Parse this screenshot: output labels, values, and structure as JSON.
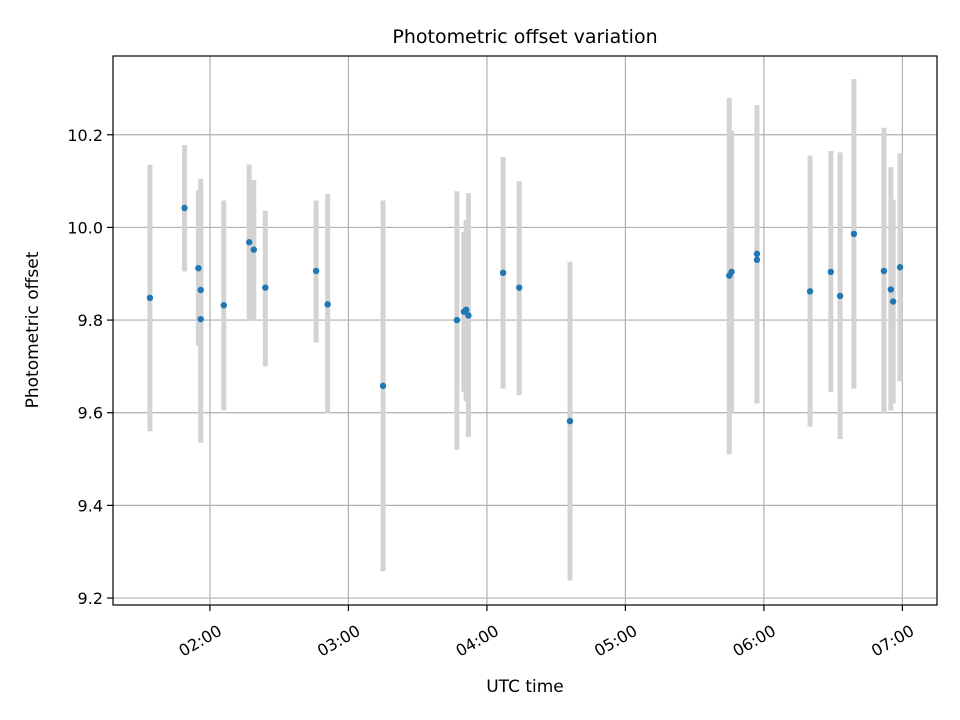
{
  "chart_data": {
    "type": "scatter",
    "title": "Photometric offset variation",
    "xlabel": "UTC time",
    "ylabel": "Photometric offset",
    "x_unit": "hours UTC",
    "xlim": [
      "01:18",
      "07:15"
    ],
    "ylim": [
      9.185,
      10.37
    ],
    "x_ticks": [
      "02:00",
      "03:00",
      "04:00",
      "05:00",
      "06:00",
      "07:00"
    ],
    "y_ticks": [
      "9.2",
      "9.4",
      "9.6",
      "9.8",
      "10.0",
      "10.2"
    ],
    "grid": true,
    "colors": {
      "point": "#1f77b4",
      "errorbar": "#d3d3d3",
      "grid": "#b0b0b0"
    },
    "points": [
      {
        "time": "01:34",
        "y": 9.848,
        "err_low": 9.56,
        "err_high": 10.135
      },
      {
        "time": "01:49",
        "y": 10.042,
        "err_low": 9.905,
        "err_high": 10.178
      },
      {
        "time": "01:55",
        "y": 9.912,
        "err_low": 9.745,
        "err_high": 10.08
      },
      {
        "time": "01:56",
        "y": 9.865,
        "err_low": 9.62,
        "err_high": 10.105
      },
      {
        "time": "01:56",
        "y": 9.802,
        "err_low": 9.535,
        "err_high": 10.07
      },
      {
        "time": "02:06",
        "y": 9.832,
        "err_low": 9.605,
        "err_high": 10.058
      },
      {
        "time": "02:17",
        "y": 9.968,
        "err_low": 9.8,
        "err_high": 10.136
      },
      {
        "time": "02:19",
        "y": 9.952,
        "err_low": 9.8,
        "err_high": 10.102
      },
      {
        "time": "02:24",
        "y": 9.87,
        "err_low": 9.7,
        "err_high": 10.036
      },
      {
        "time": "02:46",
        "y": 9.906,
        "err_low": 9.752,
        "err_high": 10.058
      },
      {
        "time": "02:51",
        "y": 9.834,
        "err_low": 9.598,
        "err_high": 10.072
      },
      {
        "time": "03:15",
        "y": 9.658,
        "err_low": 9.258,
        "err_high": 10.058
      },
      {
        "time": "03:47",
        "y": 9.8,
        "err_low": 9.52,
        "err_high": 10.078
      },
      {
        "time": "03:50",
        "y": 9.818,
        "err_low": 9.645,
        "err_high": 9.99
      },
      {
        "time": "03:51",
        "y": 9.822,
        "err_low": 9.625,
        "err_high": 10.016
      },
      {
        "time": "03:52",
        "y": 9.81,
        "err_low": 9.548,
        "err_high": 10.074
      },
      {
        "time": "04:07",
        "y": 9.902,
        "err_low": 9.652,
        "err_high": 10.152
      },
      {
        "time": "04:14",
        "y": 9.87,
        "err_low": 9.638,
        "err_high": 10.1
      },
      {
        "time": "04:36",
        "y": 9.582,
        "err_low": 9.238,
        "err_high": 9.926
      },
      {
        "time": "05:45",
        "y": 9.896,
        "err_low": 9.51,
        "err_high": 10.28
      },
      {
        "time": "05:46",
        "y": 9.904,
        "err_low": 9.6,
        "err_high": 10.208
      },
      {
        "time": "05:57",
        "y": 9.93,
        "err_low": 9.62,
        "err_high": 10.24
      },
      {
        "time": "05:57",
        "y": 9.943,
        "err_low": 9.625,
        "err_high": 10.264
      },
      {
        "time": "06:20",
        "y": 9.862,
        "err_low": 9.57,
        "err_high": 10.155
      },
      {
        "time": "06:29",
        "y": 9.904,
        "err_low": 9.645,
        "err_high": 10.165
      },
      {
        "time": "06:33",
        "y": 9.852,
        "err_low": 9.543,
        "err_high": 10.162
      },
      {
        "time": "06:39",
        "y": 9.986,
        "err_low": 9.652,
        "err_high": 10.32
      },
      {
        "time": "06:52",
        "y": 9.906,
        "err_low": 9.598,
        "err_high": 10.215
      },
      {
        "time": "06:55",
        "y": 9.866,
        "err_low": 9.605,
        "err_high": 10.13
      },
      {
        "time": "06:56",
        "y": 9.84,
        "err_low": 9.62,
        "err_high": 10.06
      },
      {
        "time": "06:59",
        "y": 9.914,
        "err_low": 9.668,
        "err_high": 10.16
      }
    ]
  }
}
